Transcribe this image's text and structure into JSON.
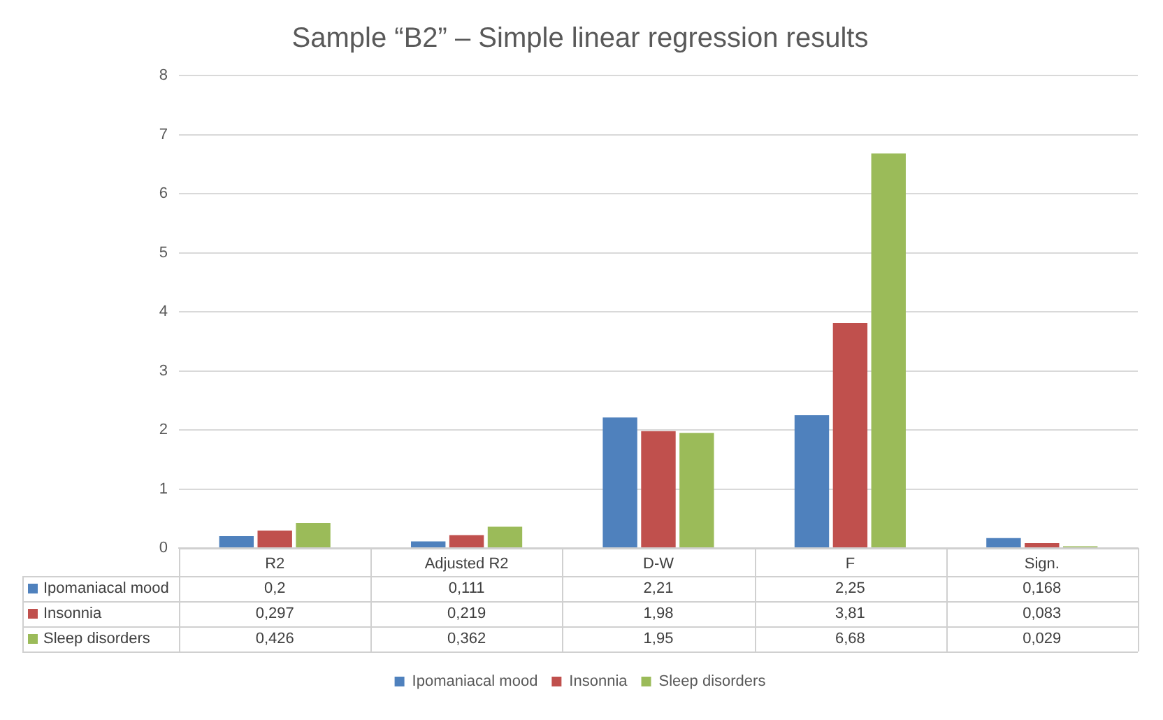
{
  "chart_data": {
    "type": "bar",
    "title": "Sample “B2” – Simple linear regression results",
    "categories": [
      "R2",
      "Adjusted R2",
      "D-W",
      "F",
      "Sign."
    ],
    "series": [
      {
        "name": "Ipomaniacal mood",
        "color": "#4f81bd",
        "values": [
          0.2,
          0.111,
          2.21,
          2.25,
          0.168
        ],
        "value_labels": [
          "0,2",
          "0,111",
          "2,21",
          "2,25",
          "0,168"
        ]
      },
      {
        "name": "Insonnia",
        "color": "#c0504d",
        "values": [
          0.297,
          0.219,
          1.98,
          3.81,
          0.083
        ],
        "value_labels": [
          "0,297",
          "0,219",
          "1,98",
          "3,81",
          "0,083"
        ]
      },
      {
        "name": "Sleep disorders",
        "color": "#9bbb59",
        "values": [
          0.426,
          0.362,
          1.95,
          6.68,
          0.029
        ],
        "value_labels": [
          "0,426",
          "0,362",
          "1,95",
          "6,68",
          "0,029"
        ]
      }
    ],
    "ylim": [
      0,
      8
    ],
    "yticks": [
      0,
      1,
      2,
      3,
      4,
      5,
      6,
      7,
      8
    ],
    "grid": "y",
    "legend": "bottom"
  }
}
